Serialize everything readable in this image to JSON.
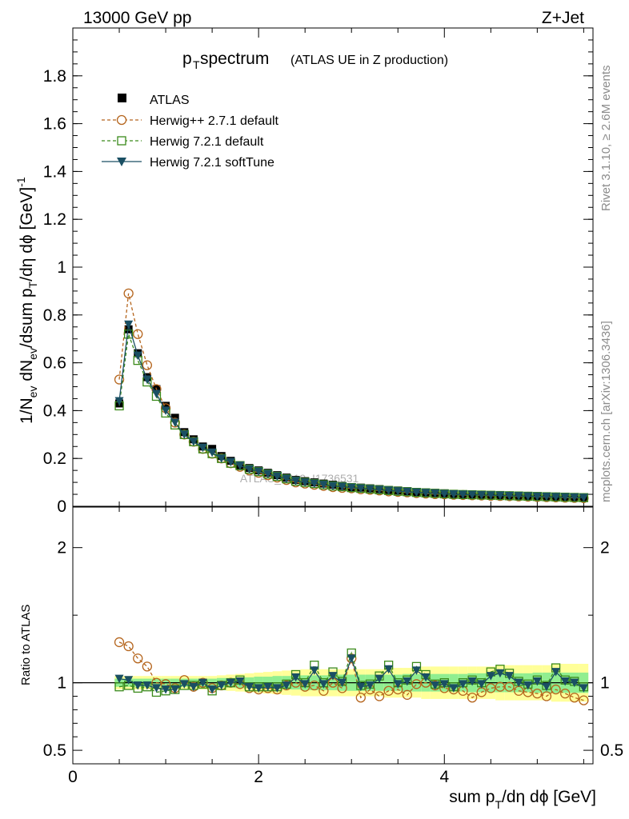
{
  "header": {
    "left": "13000 GeV pp",
    "right": "Z+Jet"
  },
  "side_labels": {
    "rivet": "Rivet 3.1.10, ≥ 2.6M events",
    "mcplots": "mcplots.cern.ch [arXiv:1306.3436]"
  },
  "colors": {
    "atlas": "#000000",
    "herwigpp": "#b5651d",
    "herwig721": "#3a8a1a",
    "softtune": "#1a4f63",
    "band_outer": "#ffff99",
    "band_inner": "#90ee90"
  },
  "chart_data": [
    {
      "type": "scatter",
      "title_main": "p",
      "title_sub": "T",
      "title_rest": " spectrum",
      "title_small": "(ATLAS UE in Z production)",
      "ylabel": "1/N_ev dN_ev/dsum p_T/dη dϕ [GeV]^-1",
      "ylim": [
        0,
        2.0
      ],
      "yticks": [
        0,
        0.2,
        0.4,
        0.6,
        0.8,
        1,
        1.2,
        1.4,
        1.6,
        1.8
      ],
      "ytick_labels": [
        "0",
        "0.2",
        "0.4",
        "0.6",
        "0.8",
        "1",
        "1.2",
        "1.4",
        "1.6",
        "1.8"
      ],
      "xlim": [
        0,
        5.6
      ],
      "watermark": "ATLAS_2019_I1736531",
      "legend_position": "top-left",
      "x": [
        0.5,
        0.6,
        0.7,
        0.8,
        0.9,
        1.0,
        1.1,
        1.2,
        1.3,
        1.4,
        1.5,
        1.6,
        1.7,
        1.8,
        1.9,
        2.0,
        2.1,
        2.2,
        2.3,
        2.4,
        2.5,
        2.6,
        2.7,
        2.8,
        2.9,
        3.0,
        3.1,
        3.2,
        3.3,
        3.4,
        3.5,
        3.6,
        3.7,
        3.8,
        3.9,
        4.0,
        4.1,
        4.2,
        4.3,
        4.4,
        4.5,
        4.6,
        4.7,
        4.8,
        4.9,
        5.0,
        5.1,
        5.2,
        5.3,
        5.4,
        5.5
      ],
      "series": [
        {
          "name": "ATLAS",
          "style": "data",
          "values": [
            0.43,
            0.74,
            0.64,
            0.54,
            0.49,
            0.42,
            0.37,
            0.31,
            0.28,
            0.25,
            0.24,
            0.21,
            0.19,
            0.17,
            0.16,
            0.15,
            0.14,
            0.13,
            0.12,
            0.11,
            0.105,
            0.1,
            0.095,
            0.09,
            0.085,
            0.08,
            0.078,
            0.075,
            0.072,
            0.068,
            0.066,
            0.063,
            0.06,
            0.058,
            0.056,
            0.054,
            0.052,
            0.05,
            0.049,
            0.048,
            0.047,
            0.046,
            0.045,
            0.044,
            0.043,
            0.042,
            0.041,
            0.04,
            0.039,
            0.038,
            0.037
          ]
        },
        {
          "name": "Herwig++ 2.7.1 default",
          "style": "circle-dashed",
          "values": [
            0.53,
            0.89,
            0.72,
            0.59,
            0.49,
            0.41,
            0.35,
            0.3,
            0.27,
            0.24,
            0.22,
            0.2,
            0.18,
            0.165,
            0.15,
            0.14,
            0.13,
            0.12,
            0.11,
            0.1,
            0.095,
            0.09,
            0.085,
            0.08,
            0.077,
            0.075,
            0.071,
            0.069,
            0.066,
            0.062,
            0.06,
            0.058,
            0.055,
            0.053,
            0.051,
            0.05,
            0.048,
            0.047,
            0.046,
            0.045,
            0.044,
            0.043,
            0.042,
            0.041,
            0.04,
            0.039,
            0.038,
            0.037,
            0.036,
            0.035,
            0.034
          ]
        },
        {
          "name": "Herwig 7.2.1 default",
          "style": "square-dashed",
          "values": [
            0.42,
            0.72,
            0.61,
            0.52,
            0.46,
            0.39,
            0.34,
            0.3,
            0.27,
            0.24,
            0.22,
            0.2,
            0.18,
            0.17,
            0.155,
            0.145,
            0.135,
            0.125,
            0.115,
            0.105,
            0.1,
            0.095,
            0.09,
            0.085,
            0.082,
            0.078,
            0.075,
            0.072,
            0.069,
            0.066,
            0.063,
            0.061,
            0.058,
            0.056,
            0.054,
            0.052,
            0.05,
            0.049,
            0.048,
            0.047,
            0.046,
            0.045,
            0.044,
            0.043,
            0.042,
            0.041,
            0.04,
            0.039,
            0.038,
            0.037,
            0.036
          ]
        },
        {
          "name": "Herwig 7.2.1 softTune",
          "style": "triangle-solid",
          "values": [
            0.44,
            0.76,
            0.63,
            0.53,
            0.47,
            0.4,
            0.35,
            0.3,
            0.27,
            0.245,
            0.225,
            0.2,
            0.185,
            0.17,
            0.155,
            0.145,
            0.135,
            0.125,
            0.115,
            0.106,
            0.1,
            0.095,
            0.09,
            0.085,
            0.082,
            0.078,
            0.075,
            0.072,
            0.069,
            0.066,
            0.063,
            0.061,
            0.058,
            0.056,
            0.054,
            0.052,
            0.05,
            0.049,
            0.048,
            0.047,
            0.046,
            0.045,
            0.044,
            0.043,
            0.042,
            0.041,
            0.04,
            0.039,
            0.038,
            0.037,
            0.036
          ]
        }
      ]
    },
    {
      "type": "scatter",
      "ylabel": "Ratio to ATLAS",
      "ylim": [
        0.4,
        2.3
      ],
      "yticks": [
        0.5,
        1,
        2
      ],
      "ytick_labels": [
        "0.5",
        "1",
        "2"
      ],
      "xlim": [
        0,
        5.6
      ],
      "xticks": [
        0,
        2,
        4
      ],
      "xtick_labels": [
        "0",
        "2",
        "4"
      ],
      "xlabel": "sum p_T/dη dϕ [GeV]",
      "x": [
        0.5,
        0.6,
        0.7,
        0.8,
        0.9,
        1.0,
        1.1,
        1.2,
        1.3,
        1.4,
        1.5,
        1.6,
        1.7,
        1.8,
        1.9,
        2.0,
        2.1,
        2.2,
        2.3,
        2.4,
        2.5,
        2.6,
        2.7,
        2.8,
        2.9,
        3.0,
        3.1,
        3.2,
        3.3,
        3.4,
        3.5,
        3.6,
        3.7,
        3.8,
        3.9,
        4.0,
        4.1,
        4.2,
        4.3,
        4.4,
        4.5,
        4.6,
        4.7,
        4.8,
        4.9,
        5.0,
        5.1,
        5.2,
        5.3,
        5.4,
        5.5
      ],
      "band_outer": [
        0.05,
        0.05,
        0.05,
        0.05,
        0.05,
        0.05,
        0.05,
        0.05,
        0.05,
        0.05,
        0.05,
        0.055,
        0.06,
        0.065,
        0.07,
        0.075,
        0.08,
        0.085,
        0.09,
        0.095,
        0.1,
        0.1,
        0.1,
        0.1,
        0.1,
        0.1,
        0.1,
        0.1,
        0.1,
        0.11,
        0.11,
        0.11,
        0.11,
        0.12,
        0.12,
        0.12,
        0.12,
        0.12,
        0.12,
        0.12,
        0.12,
        0.13,
        0.13,
        0.13,
        0.13,
        0.13,
        0.13,
        0.14,
        0.14,
        0.14,
        0.14
      ],
      "band_inner": [
        0.03,
        0.03,
        0.03,
        0.03,
        0.03,
        0.03,
        0.03,
        0.03,
        0.03,
        0.03,
        0.03,
        0.035,
        0.035,
        0.04,
        0.04,
        0.045,
        0.045,
        0.05,
        0.05,
        0.05,
        0.055,
        0.055,
        0.055,
        0.055,
        0.06,
        0.06,
        0.06,
        0.06,
        0.06,
        0.06,
        0.06,
        0.065,
        0.065,
        0.065,
        0.065,
        0.065,
        0.065,
        0.065,
        0.07,
        0.07,
        0.07,
        0.07,
        0.07,
        0.07,
        0.07,
        0.075,
        0.075,
        0.075,
        0.075,
        0.075,
        0.075
      ],
      "series": [
        {
          "name": "Herwig++ 2.7.1 default",
          "style": "circle-dashed",
          "values": [
            1.3,
            1.27,
            1.18,
            1.12,
            1.0,
            0.99,
            0.96,
            1.02,
            0.97,
            1.0,
            0.96,
            0.98,
            1.0,
            0.99,
            0.96,
            0.95,
            0.96,
            0.95,
            0.98,
            1.0,
            0.97,
            0.98,
            0.94,
            1.0,
            0.96,
            1.18,
            0.89,
            0.95,
            0.9,
            0.94,
            0.95,
            0.91,
            0.99,
            1.0,
            0.98,
            0.96,
            0.95,
            0.94,
            0.89,
            0.93,
            0.96,
            0.97,
            0.97,
            0.94,
            0.93,
            0.92,
            0.9,
            0.95,
            0.92,
            0.89,
            0.87
          ]
        },
        {
          "name": "Herwig 7.2.1 default",
          "style": "square-dashed",
          "values": [
            0.97,
            0.98,
            0.96,
            0.97,
            0.93,
            0.94,
            0.95,
            0.98,
            0.98,
            0.99,
            0.94,
            0.98,
            1.0,
            1.02,
            0.97,
            0.97,
            0.97,
            0.97,
            0.99,
            1.06,
            1.0,
            1.13,
            1.0,
            1.08,
            1.01,
            1.22,
            0.98,
            0.99,
            1.05,
            1.13,
            1.0,
            1.02,
            1.12,
            1.06,
            0.99,
            1.0,
            0.97,
            1.0,
            1.02,
            1.0,
            1.08,
            1.1,
            1.07,
            1.01,
            0.99,
            1.02,
            0.98,
            1.11,
            1.02,
            1.01,
            0.97
          ]
        },
        {
          "name": "Herwig 7.2.1 softTune",
          "style": "triangle-solid",
          "values": [
            1.03,
            1.02,
            0.98,
            0.98,
            0.96,
            0.95,
            0.95,
            0.99,
            0.97,
            1.0,
            0.95,
            0.98,
            1.0,
            1.01,
            0.97,
            0.96,
            0.97,
            0.96,
            0.98,
            1.04,
            0.99,
            1.09,
            0.99,
            1.05,
            1.0,
            1.18,
            0.97,
            0.98,
            1.03,
            1.1,
            0.99,
            1.01,
            1.09,
            1.04,
            0.98,
            0.99,
            0.96,
            0.99,
            1.01,
            0.99,
            1.05,
            1.07,
            1.05,
            1.0,
            0.98,
            1.01,
            0.97,
            1.08,
            1.01,
            1.0,
            0.96
          ]
        }
      ]
    }
  ]
}
